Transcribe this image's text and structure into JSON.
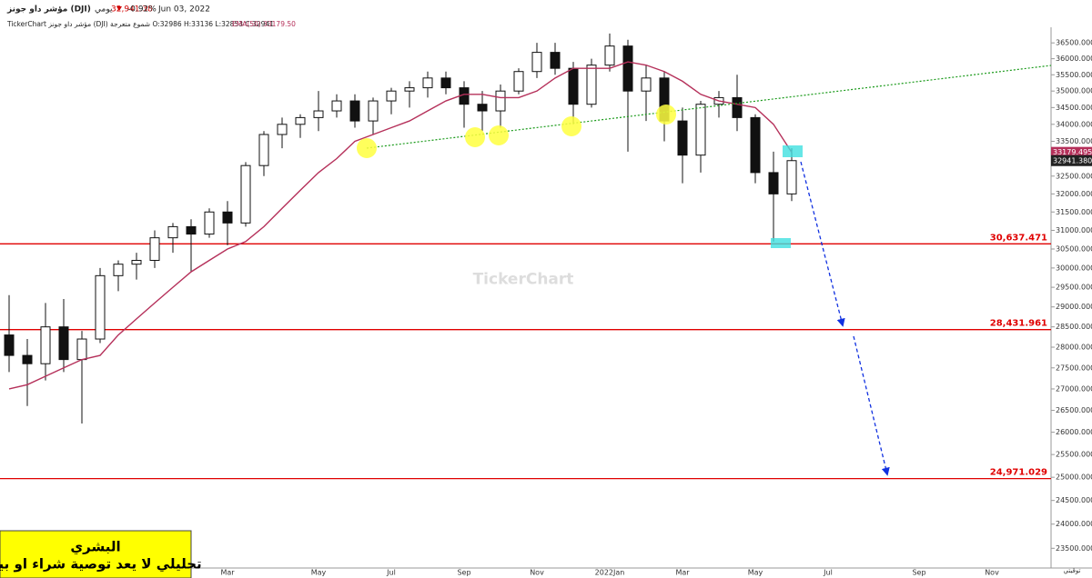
{
  "header": {
    "symbol": "مؤشر داو جونز (DJI)",
    "period": "يومي",
    "price": "32,941.38",
    "change": "-0.92%",
    "date": "Jun 03, 2022",
    "info": "TickerChart مؤشر داو جونز (DJI) شموع متعرجة O:32986 H:33136 L:32853 C:32941",
    "indicator": "EMA(50) 33179.50"
  },
  "chart_data": {
    "type": "candlestick",
    "log_scale": true,
    "watermark": "TickerChart",
    "categories": [
      null,
      null,
      null,
      null,
      null,
      null,
      null,
      null,
      null,
      null,
      null,
      null,
      "Mar",
      null,
      null,
      null,
      null,
      "May",
      null,
      null,
      null,
      "Jul",
      null,
      null,
      null,
      "Sep",
      null,
      null,
      null,
      "Nov",
      null,
      null,
      null,
      "2022Jan",
      null,
      null,
      null,
      "Mar",
      null,
      null,
      null,
      "May",
      null,
      null,
      null,
      "Jul",
      null,
      null,
      null,
      null,
      "Sep",
      null,
      null,
      null,
      "Nov",
      null,
      null,
      null
    ],
    "open": [
      28300,
      27800,
      27600,
      28500,
      27700,
      28200,
      29800,
      30100,
      30200,
      30800,
      31100,
      30900,
      31500,
      31200,
      32800,
      33700,
      34000,
      34200,
      34400,
      34700,
      34100,
      34700,
      35000,
      35100,
      35400,
      35100,
      34600,
      34400,
      35000,
      35600,
      36200,
      35700,
      34600,
      35800,
      36400,
      35000,
      35400,
      34100,
      33100,
      34600,
      34800,
      34200,
      32600,
      32000,
      null,
      null,
      null,
      null,
      null,
      null,
      null,
      null,
      null,
      null,
      null,
      null,
      null,
      null
    ],
    "high": [
      29300,
      28200,
      29100,
      29200,
      28400,
      30000,
      30200,
      30400,
      31000,
      31200,
      31300,
      31600,
      31800,
      32900,
      33800,
      34200,
      34300,
      35000,
      34900,
      34900,
      34800,
      35100,
      35300,
      35600,
      35600,
      35300,
      35000,
      35200,
      35700,
      36500,
      36500,
      35900,
      36000,
      36800,
      36600,
      35800,
      35600,
      34500,
      34700,
      35000,
      35500,
      34300,
      33200,
      33300,
      null,
      null,
      null,
      null,
      null,
      null,
      null,
      null,
      null,
      null,
      null,
      null,
      null,
      null
    ],
    "low": [
      27400,
      26600,
      27200,
      27400,
      26200,
      28100,
      29400,
      29700,
      30000,
      30400,
      29900,
      30800,
      30600,
      31100,
      32500,
      33300,
      33600,
      33800,
      34200,
      33900,
      33700,
      34300,
      34500,
      34800,
      34900,
      33900,
      33800,
      33900,
      34900,
      35400,
      35500,
      34000,
      34500,
      35600,
      33200,
      34100,
      33500,
      32300,
      32600,
      34200,
      33800,
      32300,
      30700,
      31800,
      null,
      null,
      null,
      null,
      null,
      null,
      null,
      null,
      null,
      null,
      null,
      null,
      null,
      null
    ],
    "close": [
      27800,
      27600,
      28500,
      27700,
      28200,
      29800,
      30100,
      30200,
      30800,
      31100,
      30900,
      31500,
      31200,
      32800,
      33700,
      34000,
      34200,
      34400,
      34700,
      34100,
      34700,
      35000,
      35100,
      35400,
      35100,
      34600,
      34400,
      35000,
      35600,
      36200,
      35700,
      34600,
      35800,
      36400,
      35000,
      35400,
      34100,
      33100,
      34600,
      34800,
      34200,
      32600,
      32000,
      32941.38,
      null,
      null,
      null,
      null,
      null,
      null,
      null,
      null,
      null,
      null,
      null,
      null,
      null,
      null
    ],
    "ema": {
      "name": "EMA(50)",
      "color": "#b5305a",
      "values": [
        27000,
        27100,
        27300,
        27500,
        27700,
        27800,
        28300,
        28700,
        29100,
        29500,
        29900,
        30200,
        30500,
        30700,
        31100,
        31600,
        32100,
        32600,
        33000,
        33500,
        33700,
        33900,
        34100,
        34400,
        34700,
        34900,
        34900,
        34800,
        34800,
        35000,
        35400,
        35700,
        35700,
        35700,
        35900,
        35800,
        35600,
        35300,
        34900,
        34700,
        34600,
        34500,
        34000,
        33179.4956,
        null,
        null,
        null,
        null,
        null,
        null,
        null,
        null,
        null,
        null,
        null,
        null,
        null,
        null
      ]
    },
    "price_labels": [
      {
        "value": 33179.4956,
        "label": "33179.4956",
        "color": "#b5305a"
      },
      {
        "value": 32941.38,
        "label": "32941.3800",
        "color": "#222222"
      }
    ],
    "levels": [
      {
        "value": 30637.471,
        "label": "30,637.471"
      },
      {
        "value": 28431.961,
        "label": "28,431.961"
      },
      {
        "value": 24971.029,
        "label": "24,971.029"
      }
    ],
    "level_color": "#e00000",
    "ylim": [
      23100,
      37000
    ],
    "yticks": [
      {
        "value": 23500,
        "label": "23500.0000"
      },
      {
        "value": 24000,
        "label": "24000.0000"
      },
      {
        "value": 24500,
        "label": "24500.0000"
      },
      {
        "value": 25000,
        "label": "25000.0000"
      },
      {
        "value": 25500,
        "label": "25500.0000"
      },
      {
        "value": 26000,
        "label": "26000.0000"
      },
      {
        "value": 26500,
        "label": "26500.0000"
      },
      {
        "value": 27000,
        "label": "27000.0000"
      },
      {
        "value": 27500,
        "label": "27500.0000"
      },
      {
        "value": 28000,
        "label": "28000.0000"
      },
      {
        "value": 28500,
        "label": "28500.0000"
      },
      {
        "value": 29000,
        "label": "29000.0000"
      },
      {
        "value": 29500,
        "label": "29500.0000"
      },
      {
        "value": 30000,
        "label": "30000.0000"
      },
      {
        "value": 30500,
        "label": "30500.0000"
      },
      {
        "value": 31000,
        "label": "31000.0000"
      },
      {
        "value": 31500,
        "label": "31500.0000"
      },
      {
        "value": 32000,
        "label": "32000.0000"
      },
      {
        "value": 32500,
        "label": "32500.0000"
      },
      {
        "value": 33000,
        "label": "33000.0000"
      },
      {
        "value": 33500,
        "label": "33500.0000"
      },
      {
        "value": 34000,
        "label": "34000.0000"
      },
      {
        "value": 34500,
        "label": "34500.0000"
      },
      {
        "value": 35000,
        "label": "35000.0000"
      },
      {
        "value": 35500,
        "label": "35500.0000"
      },
      {
        "value": 36000,
        "label": "36000.0000"
      },
      {
        "value": 36500,
        "label": "36500.0000"
      }
    ]
  },
  "note": {
    "author": "البشري",
    "disclaimer": "تحليلي لا يعد توصية شراء او بيع"
  },
  "footer": {
    "corner": "توقيتي"
  }
}
